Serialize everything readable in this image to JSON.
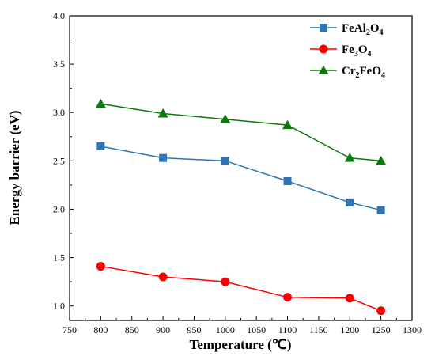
{
  "chart_data": {
    "type": "line",
    "xlabel": "Temperature (℃)",
    "ylabel": "Energy barrier (eV)",
    "xlim": [
      750,
      1300
    ],
    "ylim": [
      0.85,
      4.0
    ],
    "x_ticks": [
      "750",
      "800",
      "850",
      "900",
      "950",
      "1000",
      "1050",
      "1100",
      "1150",
      "1200",
      "1250",
      "1300"
    ],
    "y_ticks": [
      "1.0",
      "1.5",
      "2.0",
      "2.5",
      "3.0",
      "3.5",
      "4.0"
    ],
    "grid": false,
    "legend_position": "top-right",
    "x": [
      800,
      900,
      1000,
      1100,
      1200,
      1250
    ],
    "series": [
      {
        "name": "FeAl2O4",
        "name_base": "FeAl",
        "name_sub1": "2",
        "name_mid": "O",
        "name_sub2": "4",
        "marker": "square",
        "color": "#2e75b6",
        "values": [
          2.65,
          2.53,
          2.5,
          2.29,
          2.07,
          1.99
        ]
      },
      {
        "name": "Fe3O4",
        "name_base": "Fe",
        "name_sub1": "3",
        "name_mid": "O",
        "name_sub2": "4",
        "marker": "circle",
        "color": "#ff0000",
        "values": [
          1.41,
          1.3,
          1.25,
          1.09,
          1.08,
          0.95
        ]
      },
      {
        "name": "Cr2FeO4",
        "name_base": "Cr",
        "name_sub1": "2",
        "name_mid": "FeO",
        "name_sub2": "4",
        "marker": "triangle",
        "color": "#0a7a0a",
        "values": [
          3.09,
          2.99,
          2.93,
          2.87,
          2.53,
          2.5
        ]
      }
    ]
  }
}
